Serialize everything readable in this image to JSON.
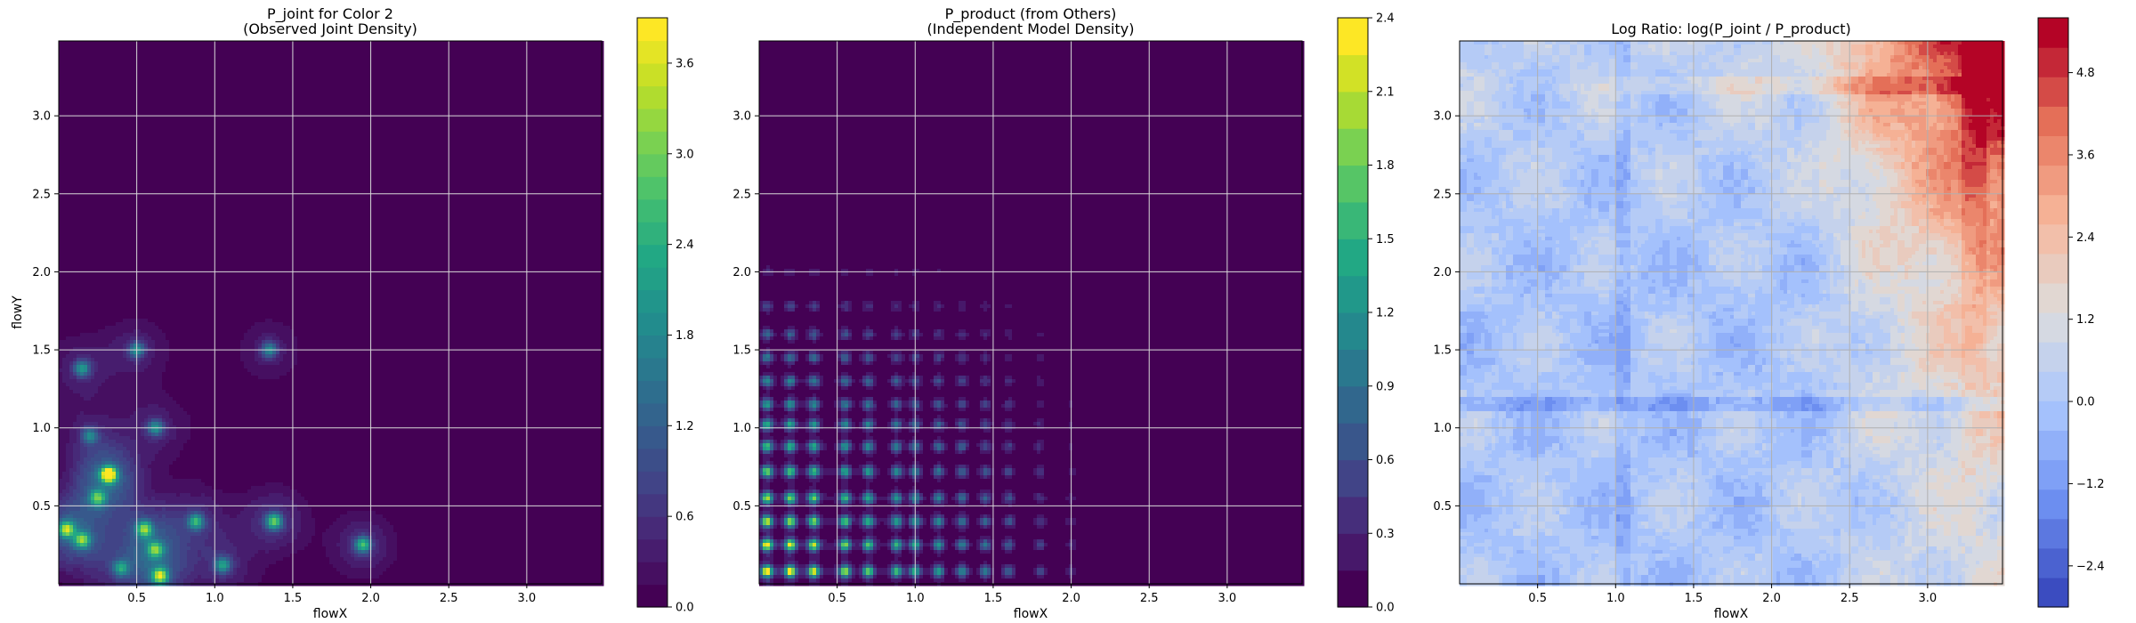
{
  "chart_data": [
    {
      "type": "heatmap",
      "title": "P_joint for Color 2\n(Observed Joint Density)",
      "xlabel": "flowX",
      "ylabel": "flowY",
      "xlim": [
        0.0,
        3.48
      ],
      "ylim": [
        0.0,
        3.48
      ],
      "xticks": [
        0.5,
        1.0,
        1.5,
        2.0,
        2.5,
        3.0
      ],
      "yticks": [
        0.5,
        1.0,
        1.5,
        2.0,
        2.5,
        3.0
      ],
      "grid": true,
      "colormap": "viridis",
      "colorbar": {
        "min": 0.0,
        "max": 3.9,
        "ticks": [
          0.0,
          0.6,
          1.2,
          1.8,
          2.4,
          3.0,
          3.6
        ],
        "levels": 26
      },
      "peaks": [
        {
          "x": 0.32,
          "y": 0.7,
          "z": 3.8
        },
        {
          "x": 0.05,
          "y": 0.35,
          "z": 2.6
        },
        {
          "x": 0.15,
          "y": 0.28,
          "z": 2.2
        },
        {
          "x": 0.25,
          "y": 0.55,
          "z": 2.0
        },
        {
          "x": 0.55,
          "y": 0.35,
          "z": 2.3
        },
        {
          "x": 0.65,
          "y": 0.05,
          "z": 2.8
        },
        {
          "x": 0.62,
          "y": 0.22,
          "z": 2.0
        },
        {
          "x": 0.88,
          "y": 0.4,
          "z": 2.0
        },
        {
          "x": 1.05,
          "y": 0.12,
          "z": 1.8
        },
        {
          "x": 1.38,
          "y": 0.4,
          "z": 2.4
        },
        {
          "x": 1.95,
          "y": 0.25,
          "z": 2.2
        },
        {
          "x": 0.5,
          "y": 1.5,
          "z": 1.6
        },
        {
          "x": 0.15,
          "y": 1.38,
          "z": 1.7
        },
        {
          "x": 1.35,
          "y": 1.5,
          "z": 1.5
        },
        {
          "x": 0.62,
          "y": 1.0,
          "z": 1.6
        },
        {
          "x": 0.2,
          "y": 0.95,
          "z": 1.4
        },
        {
          "x": 0.4,
          "y": 0.1,
          "z": 1.6
        }
      ]
    },
    {
      "type": "heatmap",
      "title": "P_product (from Others)\n(Independent Model Density)",
      "xlabel": "flowX",
      "ylabel": "",
      "xlim": [
        0.0,
        3.48
      ],
      "ylim": [
        0.0,
        3.48
      ],
      "xticks": [
        0.5,
        1.0,
        1.5,
        2.0,
        2.5,
        3.0
      ],
      "yticks": [
        0.5,
        1.0,
        1.5,
        2.0,
        2.5,
        3.0
      ],
      "grid": true,
      "colormap": "viridis",
      "colorbar": {
        "min": 0.0,
        "max": 2.4,
        "ticks": [
          0.0,
          0.3,
          0.6,
          0.9,
          1.2,
          1.5,
          1.8,
          2.1,
          2.4
        ],
        "levels": 16
      },
      "grid_lines_x": [
        0.05,
        0.2,
        0.35,
        0.55,
        0.7,
        0.88,
        1.0,
        1.15,
        1.3,
        1.45,
        1.6,
        1.8,
        2.0
      ],
      "grid_lines_y": [
        0.08,
        0.25,
        0.4,
        0.55,
        0.72,
        0.88,
        1.02,
        1.15,
        1.3,
        1.45,
        1.6,
        1.78,
        2.0
      ]
    },
    {
      "type": "heatmap",
      "title": "Log Ratio: log(P_joint / P_product)",
      "xlabel": "flowX",
      "ylabel": "",
      "xlim": [
        0.0,
        3.48
      ],
      "ylim": [
        0.0,
        3.48
      ],
      "xticks": [
        0.5,
        1.0,
        1.5,
        2.0,
        2.5,
        3.0
      ],
      "yticks": [
        0.5,
        1.0,
        1.5,
        2.0,
        2.5,
        3.0
      ],
      "grid": true,
      "colormap": "coolwarm",
      "colorbar": {
        "min": -3.0,
        "max": 5.6,
        "ticks": [
          -2.4,
          -1.2,
          0.0,
          1.2,
          2.4,
          3.6,
          4.8
        ],
        "levels": 20
      }
    }
  ]
}
